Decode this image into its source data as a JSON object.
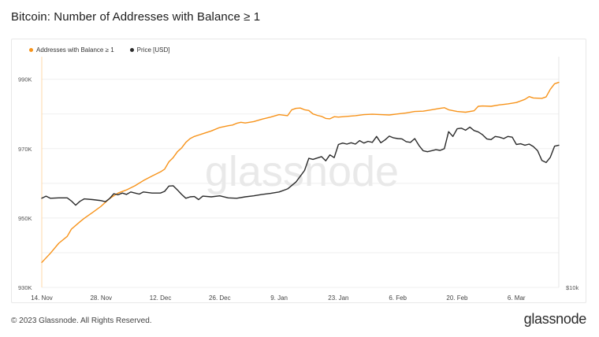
{
  "title": "Bitcoin: Number of Addresses with Balance ≥ 1",
  "watermark": "glassnode",
  "footer": {
    "copyright": "© 2023 Glassnode. All Rights Reserved.",
    "logo": "glassnode"
  },
  "colors": {
    "addresses": "#f7931a",
    "price": "#2b2b2b",
    "grid": "#efefef",
    "edge_line": "#ffd8a8"
  },
  "chart_data": {
    "type": "line",
    "x_ticks": [
      "14. Nov",
      "28. Nov",
      "12. Dec",
      "26. Dec",
      "9. Jan",
      "23. Jan",
      "6. Feb",
      "20. Feb",
      "6. Mar"
    ],
    "y_left_ticks": [
      "930K",
      "950K",
      "970K",
      "990K"
    ],
    "y_right_ticks": [
      "$10k"
    ],
    "ylim_left": [
      930000,
      996500
    ],
    "x_range_days": [
      0,
      122
    ],
    "legend_position": "top-left",
    "grid": true,
    "series": [
      {
        "name": "Addresses with Balance ≥ 1",
        "color": "#f7931a",
        "axis": "left",
        "points": [
          [
            0,
            937200
          ],
          [
            2,
            939800
          ],
          [
            4,
            942700
          ],
          [
            6,
            944700
          ],
          [
            7,
            946800
          ],
          [
            9,
            948900
          ],
          [
            10,
            949900
          ],
          [
            12,
            951600
          ],
          [
            14,
            953400
          ],
          [
            16,
            955600
          ],
          [
            18,
            957200
          ],
          [
            20,
            958100
          ],
          [
            22,
            959300
          ],
          [
            24,
            960800
          ],
          [
            26,
            962100
          ],
          [
            28,
            963300
          ],
          [
            29,
            964100
          ],
          [
            30,
            966200
          ],
          [
            31,
            967400
          ],
          [
            32,
            969100
          ],
          [
            33,
            970200
          ],
          [
            34,
            971800
          ],
          [
            35,
            972900
          ],
          [
            36,
            973500
          ],
          [
            38,
            974300
          ],
          [
            40,
            975100
          ],
          [
            42,
            976100
          ],
          [
            44,
            976600
          ],
          [
            45,
            976800
          ],
          [
            46,
            977300
          ],
          [
            47,
            977600
          ],
          [
            48,
            977400
          ],
          [
            50,
            977800
          ],
          [
            52,
            978500
          ],
          [
            54,
            979100
          ],
          [
            56,
            979800
          ],
          [
            58,
            979500
          ],
          [
            59,
            981200
          ],
          [
            60,
            981600
          ],
          [
            61,
            981700
          ],
          [
            62,
            981200
          ],
          [
            63,
            981000
          ],
          [
            64,
            980000
          ],
          [
            65,
            979600
          ],
          [
            66,
            979300
          ],
          [
            67,
            978700
          ],
          [
            68,
            978600
          ],
          [
            69,
            979200
          ],
          [
            70,
            979100
          ],
          [
            72,
            979300
          ],
          [
            74,
            979500
          ],
          [
            76,
            979800
          ],
          [
            78,
            979900
          ],
          [
            80,
            979800
          ],
          [
            82,
            979700
          ],
          [
            84,
            980000
          ],
          [
            86,
            980300
          ],
          [
            88,
            980700
          ],
          [
            90,
            980800
          ],
          [
            92,
            981200
          ],
          [
            94,
            981600
          ],
          [
            95,
            981800
          ],
          [
            96,
            981200
          ],
          [
            98,
            980700
          ],
          [
            100,
            980500
          ],
          [
            102,
            980900
          ],
          [
            103,
            982200
          ],
          [
            104,
            982300
          ],
          [
            106,
            982200
          ],
          [
            108,
            982600
          ],
          [
            110,
            982900
          ],
          [
            112,
            983300
          ],
          [
            114,
            984200
          ],
          [
            115,
            985000
          ],
          [
            116,
            984600
          ],
          [
            118,
            984500
          ],
          [
            119,
            984900
          ],
          [
            120,
            987100
          ],
          [
            121,
            988700
          ],
          [
            122,
            989100
          ]
        ]
      },
      {
        "name": "Price [USD]",
        "color": "#2b2b2b",
        "axis": "left",
        "points": [
          [
            0,
            955700
          ],
          [
            1,
            956300
          ],
          [
            2,
            955700
          ],
          [
            4,
            955800
          ],
          [
            6,
            955800
          ],
          [
            7,
            954900
          ],
          [
            8,
            953700
          ],
          [
            9,
            954800
          ],
          [
            10,
            955500
          ],
          [
            12,
            955300
          ],
          [
            14,
            955000
          ],
          [
            15,
            954700
          ],
          [
            16,
            955600
          ],
          [
            17,
            957000
          ],
          [
            18,
            956700
          ],
          [
            19,
            957200
          ],
          [
            20,
            956800
          ],
          [
            21,
            957500
          ],
          [
            22,
            957200
          ],
          [
            23,
            956900
          ],
          [
            24,
            957500
          ],
          [
            26,
            957200
          ],
          [
            28,
            957200
          ],
          [
            29,
            957700
          ],
          [
            30,
            959200
          ],
          [
            31,
            959300
          ],
          [
            32,
            958100
          ],
          [
            33,
            956800
          ],
          [
            34,
            955700
          ],
          [
            35,
            956100
          ],
          [
            36,
            956200
          ],
          [
            37,
            955300
          ],
          [
            38,
            956300
          ],
          [
            40,
            956100
          ],
          [
            42,
            956400
          ],
          [
            44,
            955800
          ],
          [
            46,
            955700
          ],
          [
            48,
            956100
          ],
          [
            50,
            956400
          ],
          [
            52,
            956800
          ],
          [
            54,
            957100
          ],
          [
            56,
            957500
          ],
          [
            58,
            958400
          ],
          [
            60,
            960400
          ],
          [
            62,
            963700
          ],
          [
            63,
            967200
          ],
          [
            64,
            966900
          ],
          [
            65,
            967300
          ],
          [
            66,
            967700
          ],
          [
            67,
            966500
          ],
          [
            68,
            968200
          ],
          [
            69,
            967400
          ],
          [
            70,
            971200
          ],
          [
            71,
            971600
          ],
          [
            72,
            971300
          ],
          [
            73,
            971700
          ],
          [
            74,
            971300
          ],
          [
            75,
            972300
          ],
          [
            76,
            971600
          ],
          [
            77,
            972100
          ],
          [
            78,
            971800
          ],
          [
            79,
            973500
          ],
          [
            80,
            971700
          ],
          [
            81,
            972500
          ],
          [
            82,
            973600
          ],
          [
            83,
            973100
          ],
          [
            84,
            972900
          ],
          [
            85,
            972800
          ],
          [
            86,
            972000
          ],
          [
            87,
            971800
          ],
          [
            88,
            972900
          ],
          [
            89,
            970900
          ],
          [
            90,
            969400
          ],
          [
            91,
            969100
          ],
          [
            92,
            969400
          ],
          [
            93,
            969700
          ],
          [
            94,
            969500
          ],
          [
            95,
            970000
          ],
          [
            96,
            974900
          ],
          [
            97,
            973500
          ],
          [
            98,
            975700
          ],
          [
            99,
            975900
          ],
          [
            100,
            975300
          ],
          [
            101,
            976200
          ],
          [
            102,
            975200
          ],
          [
            103,
            974800
          ],
          [
            104,
            974000
          ],
          [
            105,
            972800
          ],
          [
            106,
            972600
          ],
          [
            107,
            973500
          ],
          [
            108,
            973300
          ],
          [
            109,
            972900
          ],
          [
            110,
            973500
          ],
          [
            111,
            973300
          ],
          [
            112,
            971200
          ],
          [
            113,
            971400
          ],
          [
            114,
            971000
          ],
          [
            115,
            971300
          ],
          [
            116,
            970600
          ],
          [
            117,
            969400
          ],
          [
            118,
            966600
          ],
          [
            119,
            966000
          ],
          [
            120,
            967500
          ],
          [
            121,
            970700
          ],
          [
            122,
            971000
          ]
        ]
      }
    ]
  }
}
